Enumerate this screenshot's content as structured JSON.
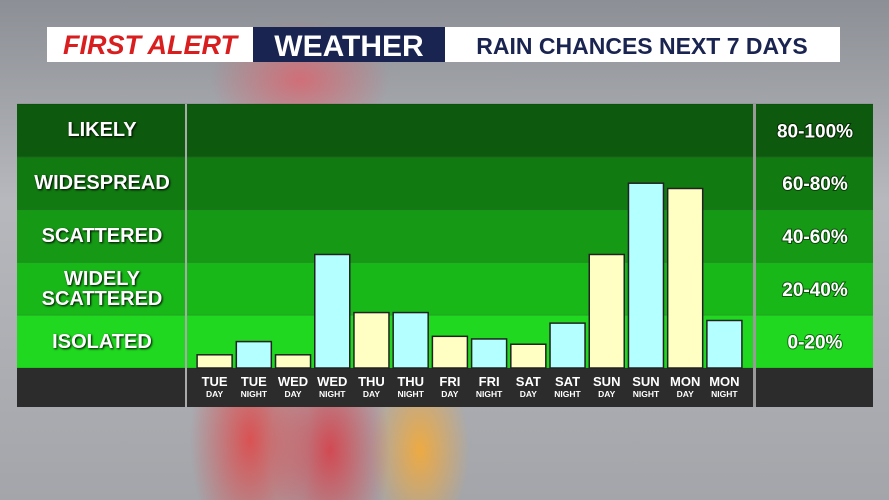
{
  "header": {
    "brand": "FIRST ALERT",
    "section": "WEATHER",
    "title": "RAIN CHANCES NEXT 7 DAYS"
  },
  "chart_data": {
    "type": "bar",
    "categories": [
      {
        "day": "TUE",
        "period": "DAY"
      },
      {
        "day": "TUE",
        "period": "NIGHT"
      },
      {
        "day": "WED",
        "period": "DAY"
      },
      {
        "day": "WED",
        "period": "NIGHT"
      },
      {
        "day": "THU",
        "period": "DAY"
      },
      {
        "day": "THU",
        "period": "NIGHT"
      },
      {
        "day": "FRI",
        "period": "DAY"
      },
      {
        "day": "FRI",
        "period": "NIGHT"
      },
      {
        "day": "SAT",
        "period": "DAY"
      },
      {
        "day": "SAT",
        "period": "NIGHT"
      },
      {
        "day": "SUN",
        "period": "DAY"
      },
      {
        "day": "SUN",
        "period": "NIGHT"
      },
      {
        "day": "MON",
        "period": "DAY"
      },
      {
        "day": "MON",
        "period": "NIGHT"
      }
    ],
    "values": [
      5,
      10,
      5,
      43,
      21,
      21,
      12,
      11,
      9,
      17,
      43,
      70,
      68,
      18
    ],
    "bar_colors": [
      "#ffffc4",
      "#b4ffff"
    ],
    "ylim": [
      0,
      100
    ],
    "yticks": [
      0,
      20,
      40,
      60,
      80,
      100
    ],
    "bands": [
      {
        "label": "ISOLATED",
        "range": "0-20%",
        "color": "#1fd81f"
      },
      {
        "label": "WIDELY SCATTERED",
        "range": "20-40%",
        "color": "#19b819"
      },
      {
        "label": "SCATTERED",
        "range": "40-60%",
        "color": "#169a16"
      },
      {
        "label": "WIDESPREAD",
        "range": "60-80%",
        "color": "#117a11"
      },
      {
        "label": "LIKELY",
        "range": "80-100%",
        "color": "#0d590d"
      }
    ]
  }
}
